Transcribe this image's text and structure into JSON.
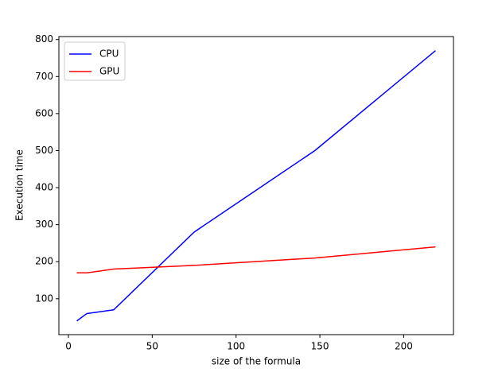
{
  "chart_data": {
    "type": "line",
    "x_label": "size of the formula",
    "y_label": "Execution time",
    "x": [
      5,
      11,
      27,
      75,
      147,
      219
    ],
    "series": [
      {
        "name": "CPU",
        "color": "#0000ff",
        "values": [
          40,
          60,
          70,
          280,
          500,
          770
        ]
      },
      {
        "name": "GPU",
        "color": "#ff0000",
        "values": [
          170,
          170,
          180,
          190,
          210,
          240
        ]
      }
    ],
    "xlim": [
      -5.7,
      229.7
    ],
    "xticks": [
      0,
      50,
      100,
      150,
      200
    ],
    "ylim": [
      3,
      808
    ],
    "yticks": [
      100,
      200,
      300,
      400,
      500,
      600,
      700,
      800
    ],
    "legend": "upper-left"
  }
}
